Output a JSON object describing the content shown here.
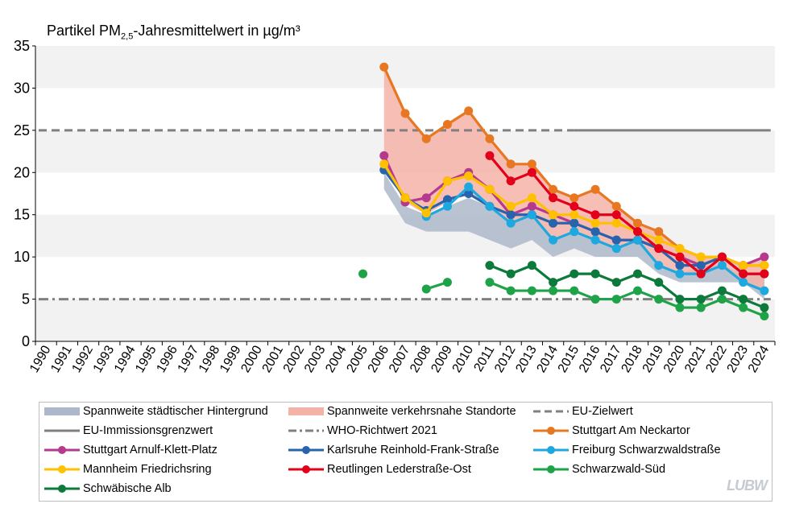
{
  "chart_data": {
    "type": "line",
    "title_main": "Partikel PM",
    "title_sub": "2,5",
    "title_rest": "-Jahresmittelwert  in µg/m³",
    "ylim": [
      0,
      35
    ],
    "yticks": [
      0,
      5,
      10,
      15,
      20,
      25,
      30,
      35
    ],
    "x": [
      1990,
      1991,
      1992,
      1993,
      1994,
      1995,
      1996,
      1997,
      1998,
      1999,
      2000,
      2001,
      2002,
      2003,
      2004,
      2005,
      2006,
      2007,
      2008,
      2009,
      2010,
      2011,
      2012,
      2013,
      2014,
      2015,
      2016,
      2017,
      2018,
      2019,
      2020,
      2021,
      2022,
      2023,
      2024
    ],
    "x_labels": [
      "1990",
      "1991",
      "1992",
      "1993",
      "1994",
      "1995",
      "1996",
      "1997",
      "1998",
      "1999",
      "2000",
      "2001",
      "2002",
      "2003",
      "2004",
      "2005",
      "2006",
      "2007",
      "2008",
      "2009",
      "2010",
      "2011",
      "2012",
      "2013",
      "2014",
      "2015",
      "2016",
      "2017",
      "2018",
      "2019",
      "2020",
      "2021",
      "2022",
      "2023",
      "2024"
    ],
    "grid": "alternating horizontal bands",
    "ranges": [
      {
        "name": "Spannweite städtischer Hintergrund",
        "color": "#adb9ca",
        "x": [
          2006,
          2007,
          2008,
          2009,
          2010,
          2011,
          2012,
          2013,
          2014,
          2015,
          2016,
          2017,
          2018,
          2019,
          2020,
          2021,
          2022,
          2023,
          2024
        ],
        "low": [
          18,
          14,
          13,
          13,
          13,
          12,
          11,
          12,
          10,
          11,
          10,
          10,
          10,
          8,
          7,
          7,
          7,
          7,
          5
        ],
        "high": [
          20,
          16,
          15,
          16,
          17,
          16,
          14,
          15,
          12,
          13,
          12,
          11,
          12,
          9,
          8,
          9,
          9,
          8,
          8
        ]
      },
      {
        "name": "Spannweite verkehrsnahe Standorte",
        "color": "#f4b3a7",
        "x": [
          2006,
          2007,
          2008,
          2009,
          2010,
          2011,
          2012,
          2013,
          2014,
          2015,
          2016,
          2017,
          2018,
          2019,
          2020,
          2021,
          2022,
          2023,
          2024
        ],
        "low": [
          20.5,
          16.5,
          15,
          16.5,
          17.5,
          16,
          14,
          15,
          12,
          13,
          12,
          11,
          12,
          9,
          8,
          8,
          9,
          7,
          6
        ],
        "high": [
          32.5,
          27,
          24,
          25.7,
          27.3,
          24,
          21,
          21,
          18,
          17,
          18,
          16,
          14,
          13,
          11,
          10,
          10,
          9,
          10
        ]
      }
    ],
    "reference_lines": [
      {
        "name": "EU-Zielwert",
        "value": 25,
        "x_from": 1990,
        "x_to": 2015,
        "color": "#808080",
        "style": "dashed"
      },
      {
        "name": "EU-Immissionsgrenzwert",
        "value": 25,
        "x_from": 2015,
        "x_to": 2024.3,
        "color": "#808080",
        "style": "solid"
      },
      {
        "name": "WHO-Richtwert 2021",
        "value": 5,
        "x_from": 1990,
        "x_to": 2024.3,
        "color": "#808080",
        "style": "dashdot"
      }
    ],
    "series": [
      {
        "name": "Stuttgart Am Neckartor",
        "color": "#e87722",
        "x": [
          2006,
          2007,
          2008,
          2009,
          2010,
          2011,
          2012,
          2013,
          2014,
          2015,
          2016,
          2017,
          2018,
          2019,
          2020,
          2021,
          2022,
          2023,
          2024
        ],
        "values": [
          32.5,
          27,
          24,
          25.7,
          27.3,
          24,
          21,
          21,
          18,
          17,
          18,
          16,
          14,
          13,
          11,
          10,
          10,
          9,
          9
        ]
      },
      {
        "name": "Stuttgart Arnulf-Klett-Platz",
        "color": "#b5398f",
        "x": [
          2006,
          2007,
          2008,
          2009,
          2010,
          2011,
          2012,
          2013,
          2014,
          2015,
          2016,
          2017,
          2018,
          2019,
          2020,
          2021,
          2022,
          2023,
          2024
        ],
        "values": [
          22,
          16.5,
          17,
          19,
          20,
          18,
          15,
          16,
          15,
          14,
          13,
          12,
          12,
          11,
          10,
          9,
          10,
          9,
          10
        ]
      },
      {
        "name": "Karlsruhe Reinhold-Frank-Straße",
        "color": "#2764ad",
        "x": [
          2006,
          2007,
          2008,
          2009,
          2010,
          2011,
          2012,
          2013,
          2014,
          2015,
          2016,
          2017,
          2018,
          2019,
          2020,
          2021,
          2022,
          2023,
          2024
        ],
        "values": [
          20.3,
          17,
          15.5,
          16.8,
          17.5,
          16,
          15,
          15,
          14,
          14,
          13,
          12,
          12,
          11,
          9,
          9,
          10,
          8,
          8
        ]
      },
      {
        "name": "Freiburg Schwarzwaldstraße",
        "color": "#1ea8e0",
        "x": [
          2008,
          2009,
          2010,
          2011,
          2012,
          2013,
          2014,
          2015,
          2016,
          2017,
          2018,
          2019,
          2020,
          2021,
          2022,
          2023,
          2024
        ],
        "values": [
          14.8,
          16,
          18.3,
          16,
          14,
          15,
          12,
          13,
          12,
          11,
          12,
          9,
          8,
          8,
          9,
          7,
          6
        ]
      },
      {
        "name": "Mannheim Friedrichsring",
        "color": "#ffc000",
        "x": [
          2006,
          2007,
          2008,
          2009,
          2010,
          2011,
          2012,
          2013,
          2014,
          2015,
          2016,
          2017,
          2018,
          2019,
          2020,
          2021,
          2022,
          2023,
          2024
        ],
        "values": [
          21,
          17,
          15.2,
          19,
          19.6,
          18,
          16,
          17,
          15,
          15,
          14,
          14,
          13,
          12,
          11,
          10,
          10,
          9,
          9
        ]
      },
      {
        "name": "Reutlingen Lederstraße-Ost",
        "color": "#e2001a",
        "x": [
          2011,
          2012,
          2013,
          2014,
          2015,
          2016,
          2017,
          2018,
          2019,
          2020,
          2021,
          2022,
          2023,
          2024
        ],
        "values": [
          22,
          19,
          20,
          17,
          16,
          15,
          15,
          13,
          11,
          10,
          8,
          10,
          8,
          8
        ]
      },
      {
        "name": "Schwarzwald-Süd",
        "color": "#1fa348",
        "x": [
          2005,
          null,
          2008,
          2009,
          null,
          2011,
          2012,
          2013,
          2014,
          2015,
          2016,
          2017,
          2018,
          2019,
          2020,
          2021,
          2022,
          2023,
          2024
        ],
        "values": [
          8,
          null,
          6.2,
          7,
          null,
          7,
          6,
          6,
          6,
          6,
          5,
          5,
          6,
          5,
          4,
          4,
          5,
          4,
          3
        ]
      },
      {
        "name": "Schwäbische Alb",
        "color": "#0b7a3a",
        "x": [
          2011,
          2012,
          2013,
          2014,
          2015,
          2016,
          2017,
          2018,
          2019,
          2020,
          2021,
          2022,
          2023,
          2024
        ],
        "values": [
          9,
          8,
          9,
          7,
          8,
          8,
          7,
          8,
          7,
          5,
          5,
          6,
          5,
          4
        ]
      }
    ]
  },
  "legend": {
    "items": [
      {
        "label": "Spannweite städtischer Hintergrund",
        "kind": "band",
        "color": "#adb9ca"
      },
      {
        "label": "Spannweite verkehrsnahe Standorte",
        "kind": "band",
        "color": "#f4b3a7"
      },
      {
        "label": "EU-Zielwert",
        "kind": "dashed",
        "color": "#808080"
      },
      {
        "label": "EU-Immissionsgrenzwert",
        "kind": "solid",
        "color": "#808080"
      },
      {
        "label": "WHO-Richtwert 2021",
        "kind": "dashdot",
        "color": "#808080"
      },
      {
        "label": "Stuttgart Am Neckartor",
        "kind": "marker",
        "color": "#e87722"
      },
      {
        "label": "Stuttgart Arnulf-Klett-Platz",
        "kind": "marker",
        "color": "#b5398f"
      },
      {
        "label": "Karlsruhe Reinhold-Frank-Straße",
        "kind": "marker",
        "color": "#2764ad"
      },
      {
        "label": "Freiburg Schwarzwaldstraße",
        "kind": "marker",
        "color": "#1ea8e0"
      },
      {
        "label": "Mannheim Friedrichsring",
        "kind": "marker",
        "color": "#ffc000"
      },
      {
        "label": "Reutlingen Lederstraße-Ost",
        "kind": "marker",
        "color": "#e2001a"
      },
      {
        "label": "Schwarzwald-Süd",
        "kind": "marker",
        "color": "#1fa348"
      },
      {
        "label": "Schwäbische Alb",
        "kind": "marker",
        "color": "#0b7a3a"
      }
    ]
  },
  "logo": {
    "text": "LUBW"
  }
}
